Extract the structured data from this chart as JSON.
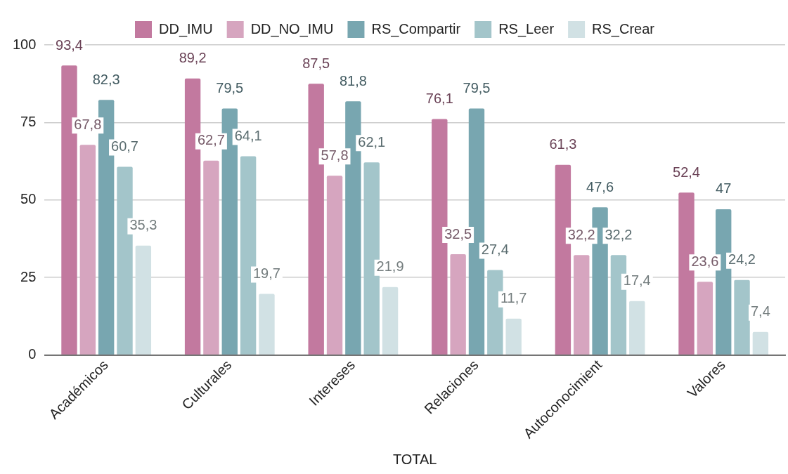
{
  "chart_data": {
    "type": "bar",
    "xlabel": "TOTAL",
    "categories": [
      "Académicos",
      "Culturales",
      "Intereses",
      "Relaciones",
      "Autoconocimient",
      "Valores"
    ],
    "series": [
      {
        "name": "DD_IMU",
        "color": "#c2799f",
        "values": [
          93.4,
          89.2,
          87.5,
          76.1,
          61.3,
          52.4
        ],
        "value_labels": [
          "93,4",
          "89,2",
          "87,5",
          "76,1",
          "61,3",
          "52,4"
        ]
      },
      {
        "name": "DD_NO_IMU",
        "color": "#d6a5bf",
        "values": [
          67.8,
          62.7,
          57.8,
          32.5,
          32.2,
          23.6
        ],
        "value_labels": [
          "67,8",
          "62,7",
          "57,8",
          "32,5",
          "32,2",
          "23,6"
        ]
      },
      {
        "name": "RS_Compartir",
        "color": "#78a6b0",
        "values": [
          82.3,
          79.5,
          81.8,
          79.5,
          47.6,
          47
        ],
        "value_labels": [
          "82,3",
          "79,5",
          "81,8",
          "79,5",
          "47,6",
          "47"
        ]
      },
      {
        "name": "RS_Leer",
        "color": "#a3c5ca",
        "values": [
          60.7,
          64.1,
          62.1,
          27.4,
          32.2,
          24.2
        ],
        "value_labels": [
          "60,7",
          "64,1",
          "62,1",
          "27,4",
          "32,2",
          "24,2"
        ]
      },
      {
        "name": "RS_Crear",
        "color": "#d1e1e4",
        "values": [
          35.3,
          19.7,
          21.9,
          11.7,
          17.4,
          7.4
        ],
        "value_labels": [
          "35,3",
          "19,7",
          "21,9",
          "11,7",
          "17,4",
          "7,4"
        ]
      }
    ],
    "ylim": [
      0,
      100
    ],
    "yticks": [
      0,
      25,
      50,
      75,
      100
    ],
    "grid": "y",
    "legend": "top"
  }
}
